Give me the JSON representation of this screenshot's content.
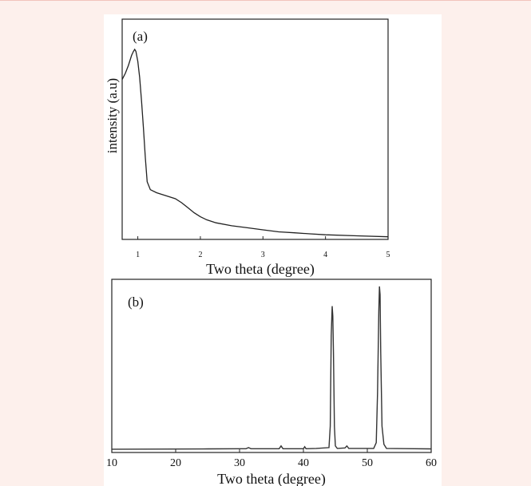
{
  "chart_data": [
    {
      "type": "line",
      "panel_label": "(a)",
      "xlabel": "Two theta (degree)",
      "ylabel": "intensity (a.u)",
      "xlim": [
        0.75,
        5
      ],
      "ylim": [
        0,
        1
      ],
      "xticks": [
        1,
        2,
        3,
        4,
        5
      ],
      "yticks": [],
      "grid": false,
      "series": [
        {
          "x": [
            0.75,
            0.8,
            0.85,
            0.9,
            0.93,
            0.95,
            0.97,
            1.0,
            1.03,
            1.06,
            1.09,
            1.12,
            1.15,
            1.2,
            1.3,
            1.4,
            1.5,
            1.6,
            1.7,
            1.8,
            1.9,
            2.0,
            2.1,
            2.25,
            2.5,
            2.75,
            3.0,
            3.25,
            3.5,
            3.75,
            4.0,
            4.5,
            5.0
          ],
          "y": [
            0.79,
            0.82,
            0.86,
            0.91,
            0.93,
            0.94,
            0.93,
            0.88,
            0.8,
            0.68,
            0.55,
            0.4,
            0.28,
            0.24,
            0.225,
            0.215,
            0.205,
            0.195,
            0.175,
            0.15,
            0.125,
            0.105,
            0.09,
            0.075,
            0.06,
            0.05,
            0.04,
            0.03,
            0.025,
            0.02,
            0.015,
            0.01,
            0.005
          ]
        }
      ]
    },
    {
      "type": "line",
      "panel_label": "(b)",
      "xlabel": "Two theta (degree)",
      "ylabel": "",
      "xlim": [
        10,
        60
      ],
      "ylim": [
        0,
        1
      ],
      "xticks": [
        10,
        20,
        30,
        40,
        50,
        60
      ],
      "yticks": [],
      "grid": false,
      "series": [
        {
          "x": [
            10,
            25,
            30,
            31,
            31.4,
            31.8,
            35,
            36.2,
            36.5,
            36.8,
            38,
            40.0,
            40.2,
            40.4,
            42,
            44.0,
            44.2,
            44.35,
            44.5,
            44.6,
            44.7,
            44.85,
            45.0,
            45.3,
            46.5,
            46.8,
            47.1,
            51.0,
            51.4,
            51.6,
            51.8,
            51.9,
            52.0,
            52.1,
            52.3,
            52.6,
            53.0,
            60
          ],
          "y": [
            0.01,
            0.012,
            0.013,
            0.013,
            0.02,
            0.013,
            0.013,
            0.013,
            0.03,
            0.013,
            0.013,
            0.013,
            0.025,
            0.013,
            0.015,
            0.02,
            0.15,
            0.7,
            0.88,
            0.82,
            0.6,
            0.15,
            0.03,
            0.015,
            0.018,
            0.03,
            0.015,
            0.015,
            0.05,
            0.35,
            0.85,
            1.0,
            0.95,
            0.6,
            0.15,
            0.04,
            0.015,
            0.012
          ]
        }
      ]
    }
  ]
}
